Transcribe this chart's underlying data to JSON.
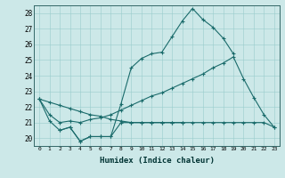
{
  "xlabel": "Humidex (Indice chaleur)",
  "xlim": [
    -0.5,
    23.5
  ],
  "ylim": [
    19.5,
    28.5
  ],
  "xticks": [
    0,
    1,
    2,
    3,
    4,
    5,
    6,
    7,
    8,
    9,
    10,
    11,
    12,
    13,
    14,
    15,
    16,
    17,
    18,
    19,
    20,
    21,
    22,
    23
  ],
  "yticks": [
    20,
    21,
    22,
    23,
    24,
    25,
    26,
    27,
    28
  ],
  "bg_color": "#cce8e8",
  "line_color": "#1a6b6b",
  "lines": [
    {
      "x": [
        0,
        1,
        2,
        3,
        4,
        5,
        6,
        7,
        8,
        9,
        10,
        11,
        12,
        13,
        14,
        15,
        16,
        17,
        18,
        19
      ],
      "y": [
        22.5,
        21.1,
        20.5,
        20.7,
        19.8,
        20.1,
        20.1,
        20.1,
        22.2,
        24.5,
        25.1,
        25.4,
        25.5,
        26.5,
        27.5,
        28.3,
        27.6,
        27.1,
        26.4,
        25.4
      ]
    },
    {
      "x": [
        0,
        1,
        2,
        3,
        4,
        5,
        6,
        7,
        8,
        9,
        10,
        11,
        12,
        13,
        14,
        15,
        16,
        17,
        18,
        19,
        20,
        21,
        22,
        23
      ],
      "y": [
        22.5,
        22.3,
        22.1,
        21.9,
        21.7,
        21.5,
        21.4,
        21.2,
        21.1,
        21.0,
        21.0,
        21.0,
        21.0,
        21.0,
        21.0,
        21.0,
        21.0,
        21.0,
        21.0,
        21.0,
        21.0,
        21.0,
        21.0,
        20.7
      ]
    },
    {
      "x": [
        0,
        1,
        2,
        3,
        4,
        5,
        6,
        7,
        8,
        9,
        10,
        11,
        12,
        13,
        14,
        15,
        16,
        17,
        18,
        19,
        20,
        21,
        22,
        23
      ],
      "y": [
        22.5,
        21.5,
        21.0,
        21.1,
        21.0,
        21.2,
        21.3,
        21.5,
        21.8,
        22.1,
        22.4,
        22.7,
        22.9,
        23.2,
        23.5,
        23.8,
        24.1,
        24.5,
        24.8,
        25.2,
        23.8,
        22.6,
        21.5,
        20.7
      ]
    },
    {
      "x": [
        2,
        3,
        4,
        5,
        6,
        7,
        8,
        9,
        10,
        11,
        12,
        13,
        14
      ],
      "y": [
        20.5,
        20.7,
        19.8,
        20.1,
        20.1,
        20.1,
        21.0,
        21.0,
        21.0,
        21.0,
        21.0,
        21.0,
        21.0
      ]
    }
  ]
}
